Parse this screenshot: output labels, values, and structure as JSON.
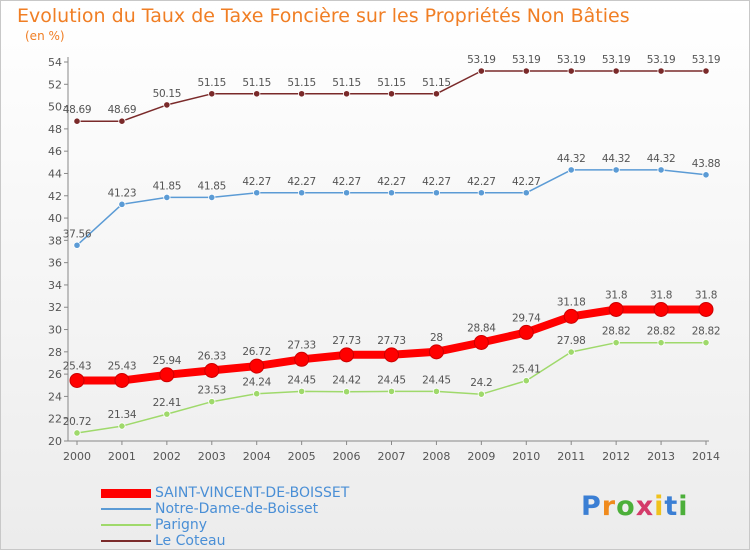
{
  "chart_data": {
    "type": "line",
    "title": "Evolution du Taux de Taxe Foncière sur les Propriétés Non Bâties",
    "ylabel": "(en %)",
    "xlabel": "",
    "x": [
      "2000",
      "2001",
      "2002",
      "2003",
      "2004",
      "2005",
      "2006",
      "2007",
      "2008",
      "2009",
      "2010",
      "2011",
      "2012",
      "2013",
      "2014"
    ],
    "ylim": [
      20,
      54
    ],
    "yticks": [
      20,
      22,
      24,
      26,
      28,
      30,
      32,
      34,
      36,
      38,
      40,
      42,
      44,
      46,
      48,
      50,
      52,
      54
    ],
    "grid": false,
    "legend_position": "bottom-left",
    "series": [
      {
        "name": "SAINT-VINCENT-DE-BOISSET",
        "color": "#ff0000",
        "values": [
          25.43,
          25.43,
          25.94,
          26.33,
          26.72,
          27.33,
          27.73,
          27.73,
          28,
          28.84,
          29.74,
          31.18,
          31.8,
          31.8,
          31.8
        ],
        "labels": [
          "25.43",
          "25.43",
          "25.94",
          "26.33",
          "26.72",
          "27.33",
          "27.73",
          "27.73",
          "28",
          "28.84",
          "29.74",
          "31.18",
          "31.8",
          "31.8",
          "31.8"
        ]
      },
      {
        "name": "Notre-Dame-de-Boisset",
        "color": "#5b9bd5",
        "values": [
          37.56,
          41.23,
          41.85,
          41.85,
          42.27,
          42.27,
          42.27,
          42.27,
          42.27,
          42.27,
          42.27,
          44.32,
          44.32,
          44.32,
          43.88
        ],
        "labels": [
          "37.56",
          "41.23",
          "41.85",
          "41.85",
          "42.27",
          "42.27",
          "42.27",
          "42.27",
          "42.27",
          "42.27",
          "42.27",
          "44.32",
          "44.32",
          "44.32",
          "43.88"
        ]
      },
      {
        "name": "Parigny",
        "color": "#9fd96b",
        "values": [
          20.72,
          21.34,
          22.41,
          23.53,
          24.24,
          24.45,
          24.42,
          24.45,
          24.45,
          24.2,
          25.41,
          27.98,
          28.82,
          28.82,
          28.82
        ],
        "labels": [
          "20.72",
          "21.34",
          "22.41",
          "23.53",
          "24.24",
          "24.45",
          "24.42",
          "24.45",
          "24.45",
          "24.2",
          "25.41",
          "27.98",
          "28.82",
          "28.82",
          "28.82"
        ]
      },
      {
        "name": "Le Coteau",
        "color": "#7a2a2a",
        "values": [
          48.69,
          48.69,
          50.15,
          51.15,
          51.15,
          51.15,
          51.15,
          51.15,
          51.15,
          53.19,
          53.19,
          53.19,
          53.19,
          53.19,
          53.19
        ],
        "labels": [
          "48.69",
          "48.69",
          "50.15",
          "51.15",
          "51.15",
          "51.15",
          "51.15",
          "51.15",
          "51.15",
          "53.19",
          "53.19",
          "53.19",
          "53.19",
          "53.19",
          "53.19"
        ]
      }
    ]
  },
  "logo": {
    "text": "Proxiti"
  }
}
